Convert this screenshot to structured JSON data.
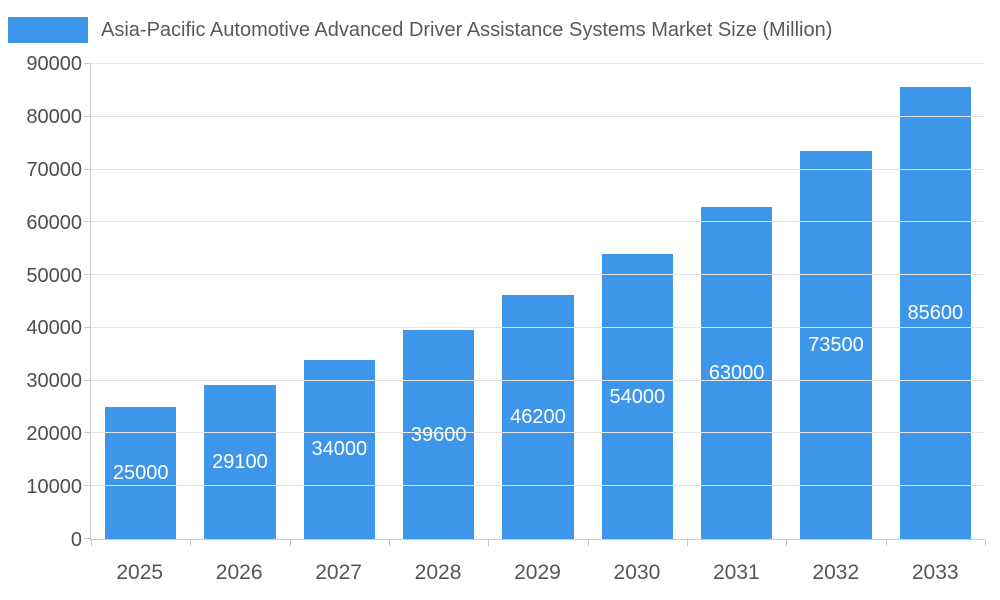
{
  "chart_data": {
    "type": "bar",
    "title": "Asia-Pacific Automotive Advanced Driver Assistance Systems Market Size (Million)",
    "categories": [
      "2025",
      "2026",
      "2027",
      "2028",
      "2029",
      "2030",
      "2031",
      "2032",
      "2033"
    ],
    "values": [
      25000,
      29100,
      34000,
      39600,
      46200,
      54000,
      63000,
      73500,
      85600
    ],
    "ylim": [
      0,
      90000
    ],
    "ytick_step": 10000,
    "yticks": [
      0,
      10000,
      20000,
      30000,
      40000,
      50000,
      60000,
      70000,
      80000,
      90000
    ],
    "grid": true,
    "legend_position": "top-left",
    "value_labels": "inside-center",
    "bar_color": "#3d96ea",
    "value_label_color": "#ffffff",
    "axis_text_color": "#4d4d4d",
    "title_color": "#595959",
    "gridline_color": "#e3e3e3",
    "axis_line_color": "#c9c9c9",
    "background_color": "#ffffff"
  }
}
